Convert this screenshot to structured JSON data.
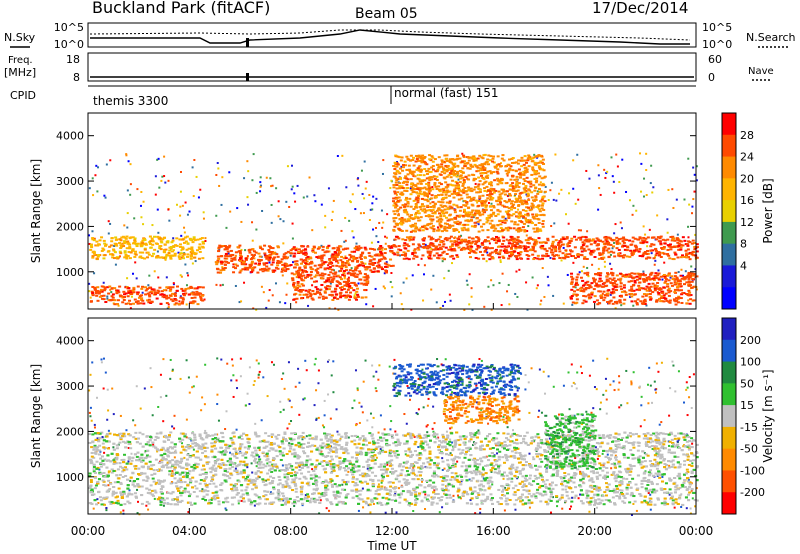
{
  "header": {
    "station": "Buckland Park (fitACF)",
    "beam": "Beam 05",
    "date": "17/Dec/2014"
  },
  "strips": {
    "nsky_label": "N.Sky",
    "nsearch_label": "N.Search",
    "nsky_ticks": [
      "10^5",
      "10^0"
    ],
    "nsearch_ticks": [
      "10^5",
      "10^0"
    ],
    "freq_label": "Freq.",
    "freq_unit": "[MHz]",
    "freq_ticks": [
      "18",
      "8"
    ],
    "nave_label": "Nave",
    "nave_ticks": [
      "60",
      "0"
    ],
    "cpid_label": "CPID",
    "cpid_modes": [
      "themis 3300",
      "normal (fast) 151"
    ]
  },
  "axes": {
    "y_label": "Slant Range [km]",
    "y_ticks": [
      "4000",
      "3000",
      "2000",
      "1000"
    ],
    "x_label": "Time UT",
    "x_ticks": [
      "00:00",
      "04:00",
      "08:00",
      "12:00",
      "16:00",
      "20:00",
      "00:00"
    ]
  },
  "power_scale": {
    "label": "Power [dB]",
    "ticks": [
      "28",
      "24",
      "20",
      "16",
      "12",
      "8",
      "4"
    ],
    "colors": [
      "#ff0000",
      "#ff4a00",
      "#ff8a00",
      "#ffb400",
      "#e8d000",
      "#3f9a4f",
      "#2f6fa0",
      "#1a1ad8",
      "#0000ff"
    ]
  },
  "velocity_scale": {
    "label": "Velocity [m s⁻¹]",
    "ticks": [
      "200",
      "100",
      "50",
      "15",
      "-15",
      "-50",
      "-100",
      "-200"
    ],
    "colors": [
      "#2020c0",
      "#1a5ad0",
      "#208a40",
      "#30c030",
      "#c0c0c0",
      "#f0b000",
      "#ff8a00",
      "#ff5000",
      "#ff0000"
    ]
  },
  "chart_data": [
    {
      "type": "heatmap",
      "xlabel": "Time UT",
      "ylabel": "Slant Range [km]",
      "x_range": [
        "00:00",
        "24:00"
      ],
      "ylim": [
        180,
        4500
      ],
      "colorbar": "Power [dB]",
      "colorbar_range": [
        0,
        30
      ],
      "bands": [
        {
          "t": [
            0,
            4.5
          ],
          "range_km": [
            1300,
            1800
          ],
          "power_db": 20
        },
        {
          "t": [
            0,
            4.5
          ],
          "range_km": [
            300,
            700
          ],
          "power_db": 26
        },
        {
          "t": [
            5,
            12
          ],
          "range_km": [
            1000,
            1600
          ],
          "power_db": 28
        },
        {
          "t": [
            8,
            11
          ],
          "range_km": [
            400,
            1000
          ],
          "power_db": 26
        },
        {
          "t": [
            12,
            24
          ],
          "range_km": [
            1300,
            1800
          ],
          "power_db": 28
        },
        {
          "t": [
            12,
            18
          ],
          "range_km": [
            1900,
            3600
          ],
          "power_db": 24
        },
        {
          "t": [
            19,
            24
          ],
          "range_km": [
            300,
            1000
          ],
          "power_db": 26
        }
      ]
    },
    {
      "type": "heatmap",
      "xlabel": "Time UT",
      "ylabel": "Slant Range [km]",
      "x_range": [
        "00:00",
        "24:00"
      ],
      "ylim": [
        180,
        4500
      ],
      "colorbar": "Velocity [m s⁻¹]",
      "colorbar_range": [
        -200,
        200
      ],
      "bands": [
        {
          "t": [
            0,
            24
          ],
          "range_km": [
            400,
            2000
          ],
          "velocity": 0
        },
        {
          "t": [
            14,
            17
          ],
          "range_km": [
            2200,
            2800
          ],
          "velocity": -80
        },
        {
          "t": [
            18,
            20
          ],
          "range_km": [
            1200,
            2400
          ],
          "velocity": 60
        },
        {
          "t": [
            12,
            17
          ],
          "range_km": [
            2800,
            3500
          ],
          "velocity": 150
        }
      ]
    }
  ]
}
